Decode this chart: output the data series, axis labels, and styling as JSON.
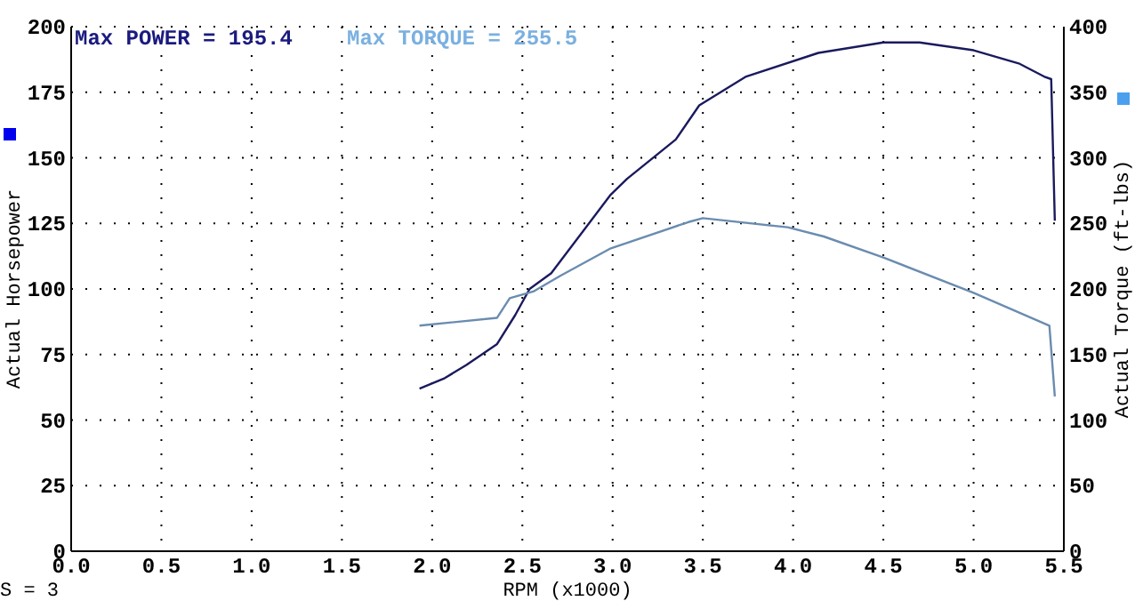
{
  "chart_data": {
    "type": "line",
    "xlabel": "RPM (x1000)",
    "ylabel": "Actual Horsepower",
    "y2label": "Actual Torque (ft-lbs)",
    "annotations": [
      "Max POWER = 195.4",
      "Max TORQUE = 255.5",
      "S = 3"
    ],
    "xlim": [
      0,
      5.5
    ],
    "xticks": [
      {
        "value": 0,
        "label": "0.0"
      },
      {
        "value": 0.5,
        "label": "0.5"
      },
      {
        "value": 1,
        "label": "1.0"
      },
      {
        "value": 1.5,
        "label": "1.5"
      },
      {
        "value": 2,
        "label": "2.0"
      },
      {
        "value": 2.5,
        "label": "2.5"
      },
      {
        "value": 3,
        "label": "3.0"
      },
      {
        "value": 3.5,
        "label": "3.5"
      },
      {
        "value": 4,
        "label": "4.0"
      },
      {
        "value": 4.5,
        "label": "4.5"
      },
      {
        "value": 5,
        "label": "5.0"
      },
      {
        "value": 5.5,
        "label": "5.5"
      }
    ],
    "ylim": [
      0,
      200
    ],
    "yticks": [
      0,
      25,
      50,
      75,
      100,
      125,
      150,
      175,
      200
    ],
    "y2lim": [
      0,
      400
    ],
    "y2ticks": [
      0,
      50,
      100,
      150,
      200,
      250,
      300,
      350,
      400
    ],
    "grid": true,
    "line_style": "solid",
    "marker": "none",
    "series": [
      {
        "color": "#1a1a5e",
        "x": [
          1.93,
          2.07,
          2.19,
          2.36,
          2.46,
          2.54,
          2.66,
          2.99,
          3.08,
          3.35,
          3.48,
          3.74,
          4.14,
          4.5,
          4.7,
          5.0,
          5.25,
          5.39,
          5.43,
          5.45
        ],
        "values": [
          62,
          66,
          71,
          79,
          90,
          100,
          106,
          136,
          142,
          157,
          170,
          181,
          190,
          194,
          194,
          191,
          186,
          181,
          180,
          126
        ]
      },
      {
        "color": "#6a8cb0",
        "axis": "y2",
        "x": [
          1.93,
          2.36,
          2.43,
          2.56,
          2.71,
          2.99,
          3.42,
          3.5,
          3.97,
          4.17,
          4.5,
          5.0,
          5.42,
          5.45
        ],
        "values": [
          172,
          178,
          193,
          198,
          210,
          231,
          251,
          254,
          247,
          240,
          224,
          197,
          172,
          118
        ]
      }
    ]
  }
}
